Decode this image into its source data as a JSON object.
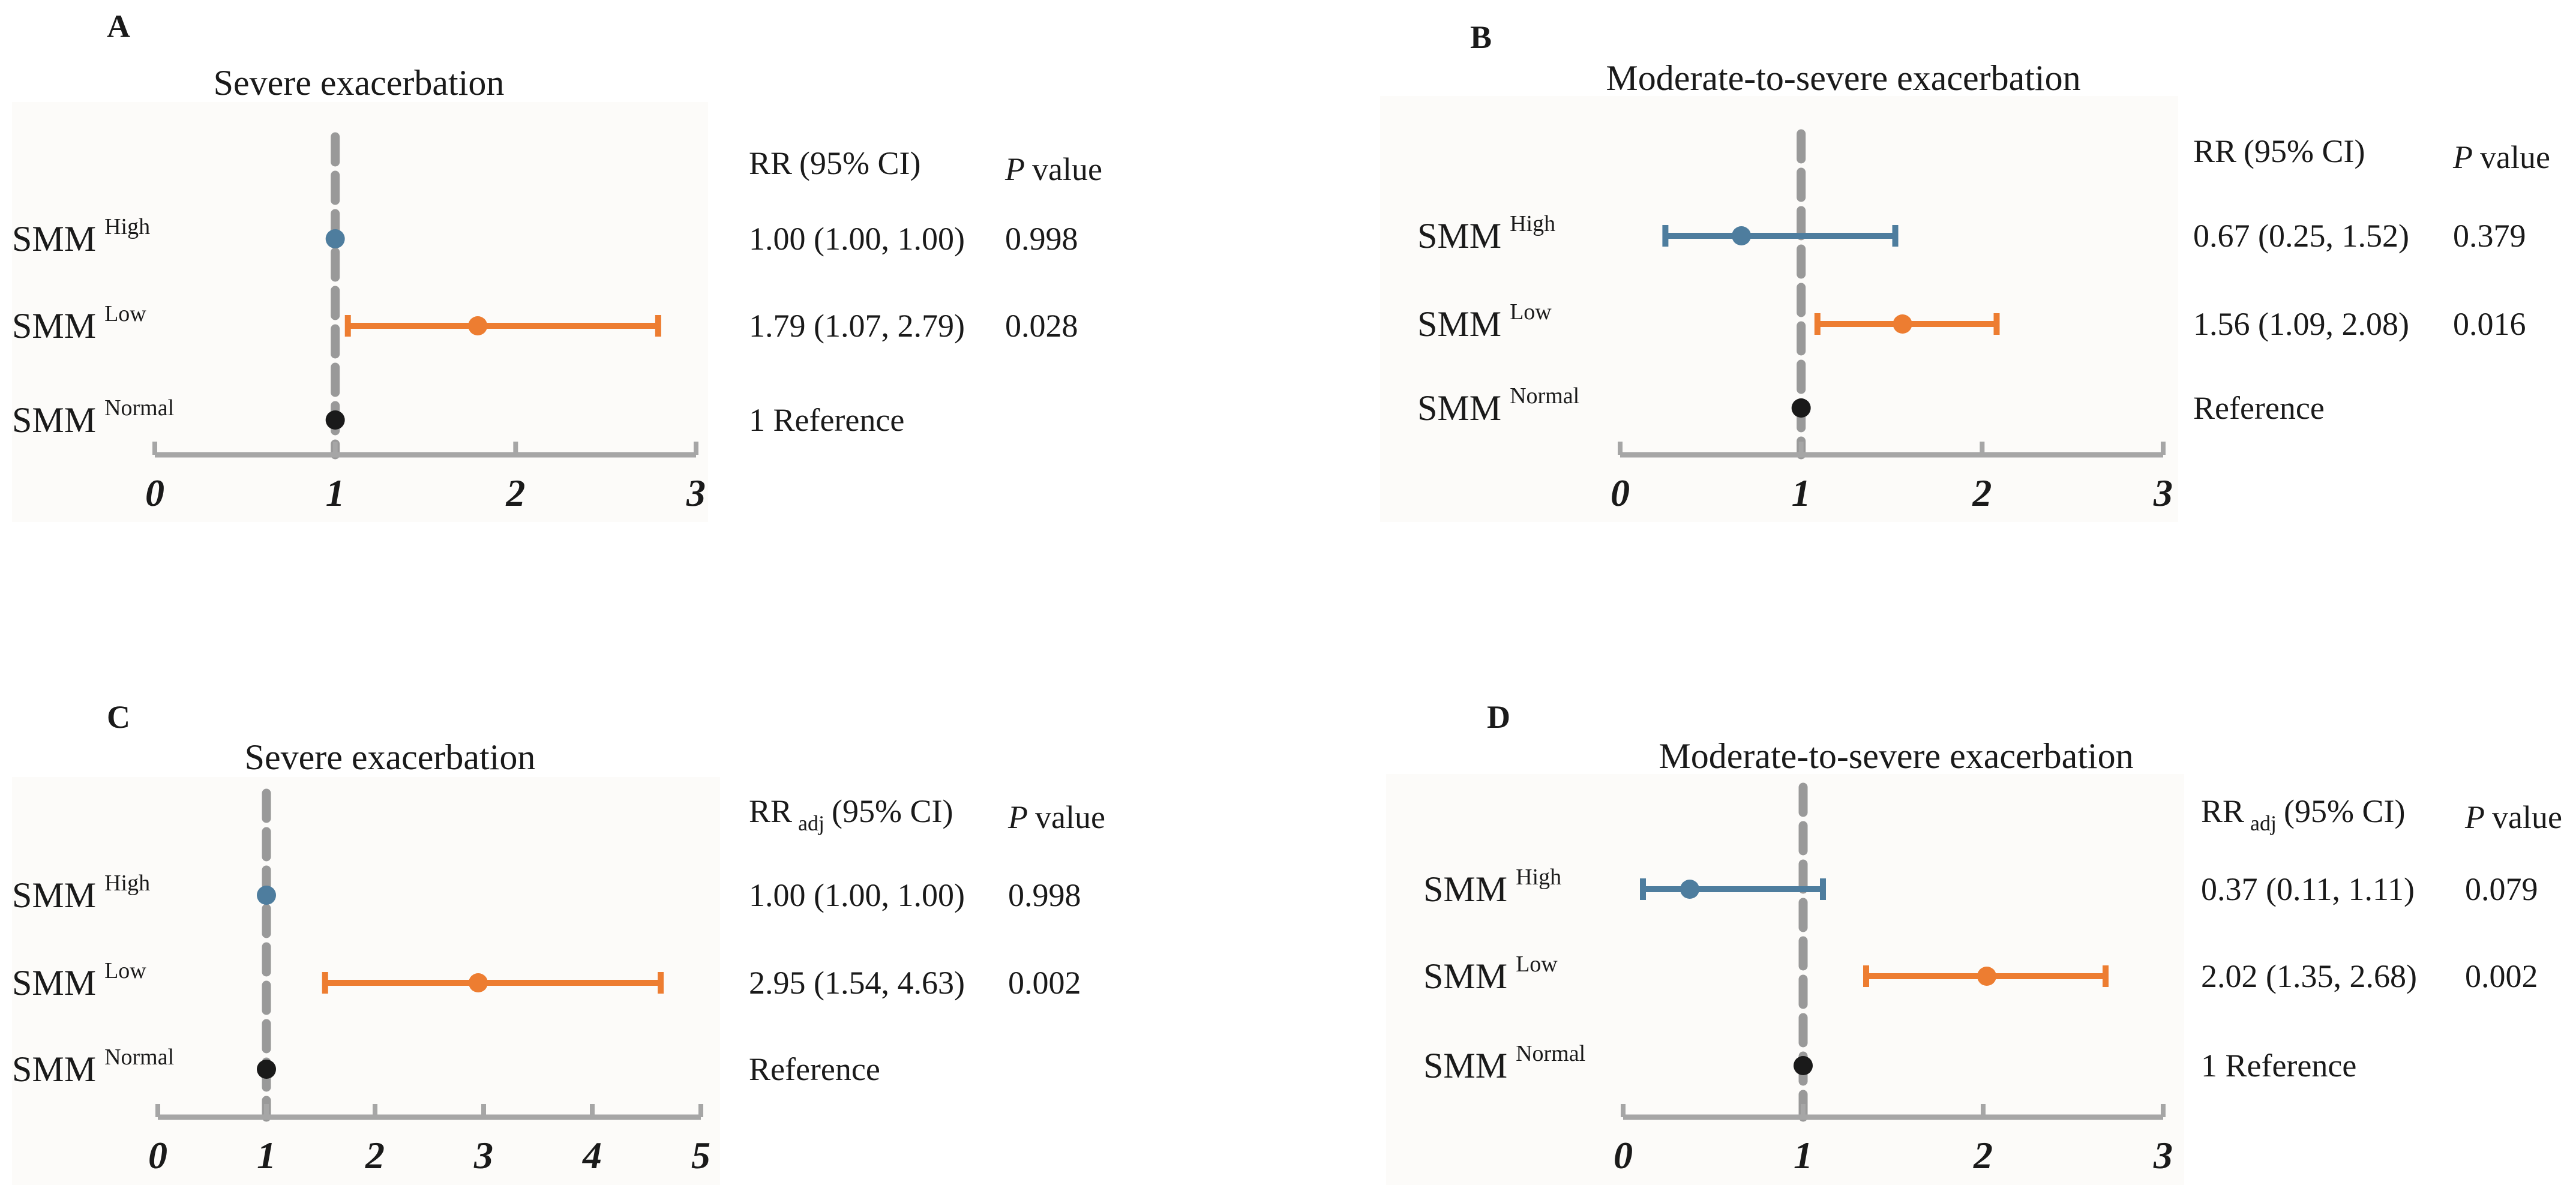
{
  "chart_data": [
    {
      "panel": "A",
      "type": "forest",
      "title": "Severe exacerbation",
      "xlim": [
        0,
        3
      ],
      "ticks": [
        "0",
        "1",
        "2",
        "3"
      ],
      "reference_line": 1,
      "header": {
        "est_label": "RR",
        "est_sub": "",
        "ci_label": "(95% CI)",
        "p_label": "P",
        "p_suffix": "value"
      },
      "rows": [
        {
          "group": "SMM",
          "sup": "High",
          "est": 1.0,
          "lo": 1.0,
          "hi": 1.0,
          "color": "#4e7d9e",
          "est_text": "1.00 (1.00, 1.00)",
          "p": "0.998"
        },
        {
          "group": "SMM",
          "sup": "Low",
          "est": 1.79,
          "lo": 1.07,
          "hi": 2.79,
          "color": "#ed7d31",
          "est_text": "1.79 (1.07, 2.79)",
          "p": "0.028"
        },
        {
          "group": "SMM",
          "sup": "Normal",
          "est": 1,
          "lo": 1,
          "hi": 1,
          "color": "#1a1a1a",
          "est_text": "1  Reference",
          "p": ""
        }
      ]
    },
    {
      "panel": "B",
      "type": "forest",
      "title": "Moderate-to-severe exacerbation",
      "xlim": [
        0,
        3
      ],
      "ticks": [
        "0",
        "1",
        "2",
        "3"
      ],
      "reference_line": 1,
      "header": {
        "est_label": "RR",
        "est_sub": "",
        "ci_label": "(95% CI)",
        "p_label": "P",
        "p_suffix": "value"
      },
      "rows": [
        {
          "group": "SMM",
          "sup": "High",
          "est": 0.67,
          "lo": 0.25,
          "hi": 1.52,
          "color": "#4e7d9e",
          "est_text": "0.67 (0.25, 1.52)",
          "p": "0.379"
        },
        {
          "group": "SMM",
          "sup": "Low",
          "est": 1.56,
          "lo": 1.09,
          "hi": 2.08,
          "color": "#ed7d31",
          "est_text": "1.56 (1.09, 2.08)",
          "p": "0.016"
        },
        {
          "group": "SMM",
          "sup": "Normal",
          "est": 1,
          "lo": 1,
          "hi": 1,
          "color": "#1a1a1a",
          "est_text": "Reference",
          "p": ""
        }
      ]
    },
    {
      "panel": "C",
      "type": "forest",
      "title": "Severe exacerbation",
      "xlim": [
        0,
        5
      ],
      "ticks": [
        "0",
        "1",
        "2",
        "3",
        "4",
        "5"
      ],
      "reference_line": 1,
      "header": {
        "est_label": "RR",
        "est_sub": "adj",
        "ci_label": "(95% CI)",
        "p_label": "P",
        "p_suffix": "value"
      },
      "rows": [
        {
          "group": "SMM",
          "sup": "High",
          "est": 1.0,
          "lo": 1.0,
          "hi": 1.0,
          "color": "#4e7d9e",
          "est_text": "1.00 (1.00, 1.00)",
          "p": "0.998"
        },
        {
          "group": "SMM",
          "sup": "Low",
          "est": 2.95,
          "lo": 1.54,
          "hi": 4.63,
          "color": "#ed7d31",
          "est_text": "2.95 (1.54, 4.63)",
          "p": "0.002"
        },
        {
          "group": "SMM",
          "sup": "Normal",
          "est": 1,
          "lo": 1,
          "hi": 1,
          "color": "#1a1a1a",
          "est_text": "Reference",
          "p": ""
        }
      ]
    },
    {
      "panel": "D",
      "type": "forest",
      "title": "Moderate-to-severe exacerbation",
      "xlim": [
        0,
        3
      ],
      "ticks": [
        "0",
        "1",
        "2",
        "3"
      ],
      "reference_line": 1,
      "header": {
        "est_label": "RR",
        "est_sub": "adj",
        "ci_label": "(95% CI)",
        "p_label": "P",
        "p_suffix": "value"
      },
      "rows": [
        {
          "group": "SMM",
          "sup": "High",
          "est": 0.37,
          "lo": 0.11,
          "hi": 1.11,
          "color": "#4e7d9e",
          "est_text": "0.37 (0.11, 1.11)",
          "p": "0.079"
        },
        {
          "group": "SMM",
          "sup": "Low",
          "est": 2.02,
          "lo": 1.35,
          "hi": 2.68,
          "color": "#ed7d31",
          "est_text": "2.02 (1.35, 2.68)",
          "p": "0.002"
        },
        {
          "group": "SMM",
          "sup": "Normal",
          "est": 1,
          "lo": 1,
          "hi": 1,
          "color": "#1a1a1a",
          "est_text": "1   Reference",
          "p": ""
        }
      ]
    }
  ],
  "style": {
    "axis_color": "#a6a6a6",
    "ref_line_color": "#999999",
    "plot_bg": "#fcfbf9"
  }
}
